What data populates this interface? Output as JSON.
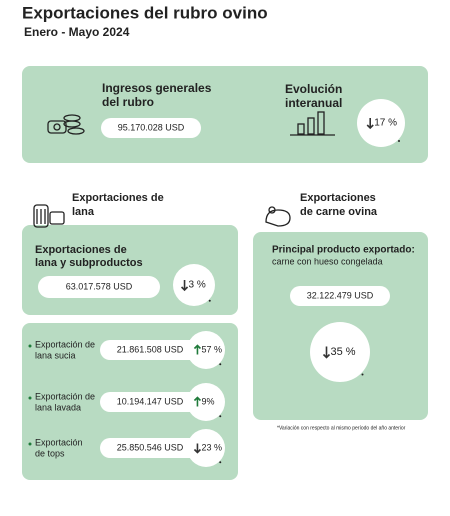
{
  "header": {
    "title": "Exportaciones del rubro ovino",
    "subtitle": "Enero - Mayo 2024"
  },
  "summary": {
    "title": [
      "Ingresos generales",
      "del rubro"
    ],
    "amount": "95.170.028 USD",
    "change_title": [
      "Evolución",
      "interanual"
    ],
    "change": "17 %",
    "trend": "down"
  },
  "wool": {
    "heading": [
      "Exportaciones de",
      "lana"
    ],
    "total": {
      "title": [
        "Exportaciones de",
        "lana y subproductos"
      ],
      "amount": "63.017.578 USD",
      "change": "3 %",
      "trend": "down"
    },
    "items": [
      {
        "label": [
          "Exportación de",
          "lana sucia"
        ],
        "amount": "21.861.508 USD",
        "change": "57 %",
        "trend": "up"
      },
      {
        "label": [
          "Exportación de",
          "lana lavada"
        ],
        "amount": "10.194.147 USD",
        "change": "9%",
        "trend": "up"
      },
      {
        "label": [
          "Exportación",
          "de tops"
        ],
        "amount": "25.850.546 USD",
        "change": "23 %",
        "trend": "down"
      }
    ]
  },
  "meat": {
    "heading": [
      "Exportaciones",
      "de carne ovina"
    ],
    "title": "Principal producto exportado:",
    "product": "carne con hueso congelada",
    "amount": "32.122.479 USD",
    "change": "35 %",
    "trend": "down"
  },
  "footnote": "*Variación con respecto al mismo período del año anterior"
}
